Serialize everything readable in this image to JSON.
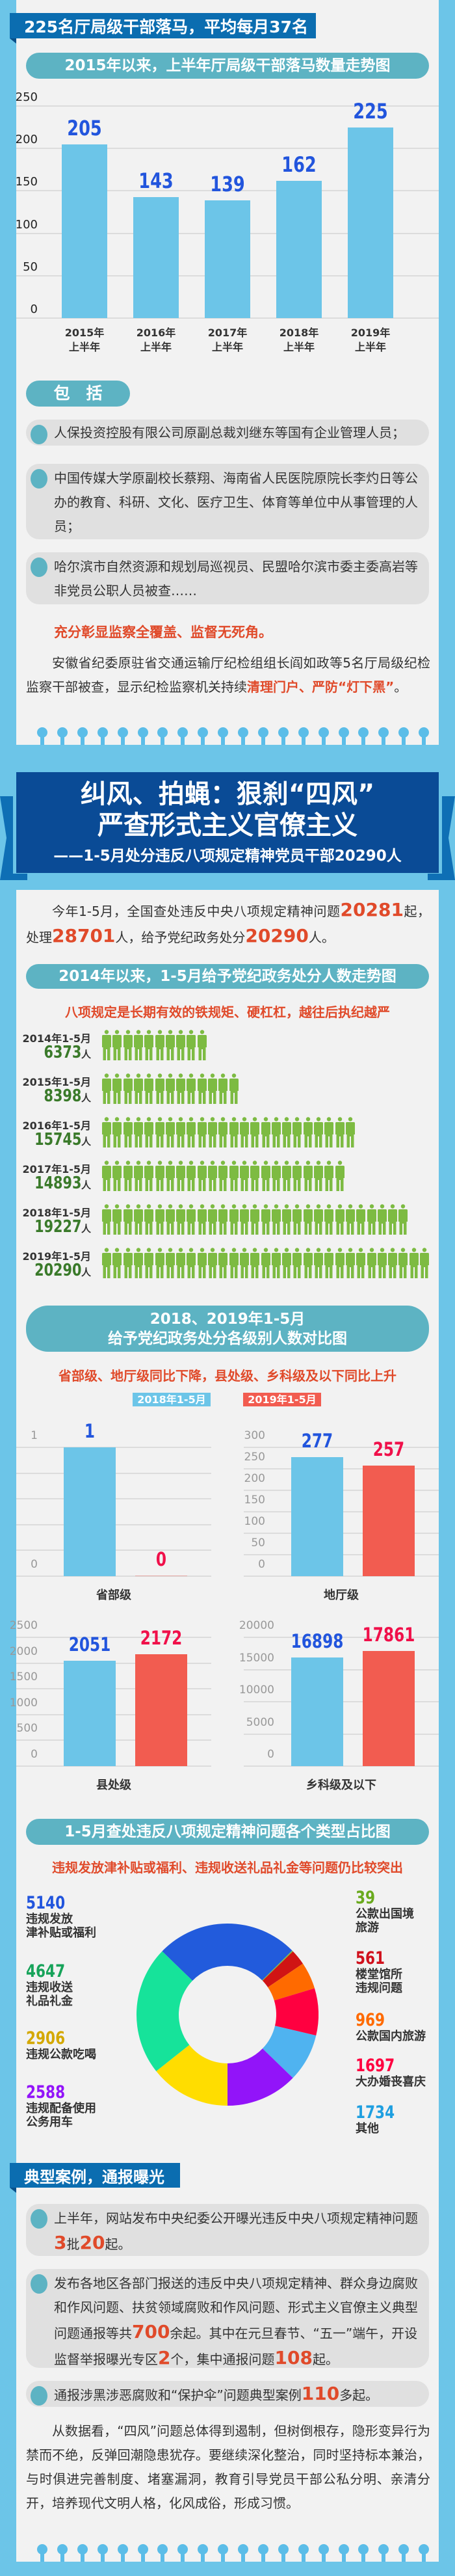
{
  "section1": {
    "header": "225名厅局级干部落马，平均每月37名",
    "chart_title": "2015年以来，上半年厅局级干部落马数量走势图"
  },
  "includes": {
    "label": "包　括",
    "items": [
      "人保投资控股有限公司原副总裁刘继东等国有企业管理人员；",
      "中国传媒大学原副校长蔡翔、海南省人民医院原院长李灼日等公办的教育、科研、文化、医疗卫生、体育等单位中从事管理的人员；",
      "哈尔滨市自然资源和规划局巡视员、民盟哈尔滨市委主委高岩等非党员公职人员被查……"
    ],
    "highlight": "充分彰显监察全覆盖、监督无死角。",
    "paragraph": [
      {
        "t": "安徽省纪委原驻省交通运输厅纪检组组长阎如政等5名厅局级纪检监察干部被查，显示纪检监察机关持续",
        "c": ""
      },
      {
        "t": "清理门户、严防“灯下黑”",
        "c": "red"
      },
      {
        "t": "。",
        "c": ""
      }
    ]
  },
  "banner": {
    "title_line1": "纠风、拍蝇：狠刹“四风”",
    "title_line2": "严查形式主义官僚主义",
    "subtitle": "——1-5月处分违反八项规定精神党员干部20290人"
  },
  "intro": [
    {
      "t": "今年1-5月，全国查处违反中央八项规定精神问题",
      "c": ""
    },
    {
      "t": "20281",
      "c": "big"
    },
    {
      "t": "起，处理",
      "c": ""
    },
    {
      "t": "28701",
      "c": "big"
    },
    {
      "t": "人，给予党纪政务处分",
      "c": ""
    },
    {
      "t": "20290",
      "c": "big"
    },
    {
      "t": "人。",
      "c": ""
    }
  ],
  "pictogram": {
    "title": "2014年以来，1-5月给予党纪政务处分人数走势图",
    "subtitle": "八项规定是长期有效的铁规矩、硬杠杠，越往后执纪越严"
  },
  "levels": {
    "title_line1": "2018、2019年1-5月",
    "title_line2": "给予党纪政务处分各级别人数对比图",
    "subtitle": "省部级、地厅级同比下降，县处级、乡科级及以下同比上升"
  },
  "donut": {
    "title": "1-5月查处违反八项规定精神问题各个类型占比图",
    "subtitle": "违规发放津补贴或福利、违规收送礼品礼金等问题仍比较突出"
  },
  "cases": {
    "header": "典型案例，通报曝光",
    "items": [
      [
        {
          "t": "上半年，网站发布中央纪委公开曝光违反中央八项规定精神问题",
          "c": ""
        },
        {
          "t": "3",
          "c": "big"
        },
        {
          "t": "批",
          "c": ""
        },
        {
          "t": "20",
          "c": "big"
        },
        {
          "t": "起。",
          "c": ""
        }
      ],
      [
        {
          "t": "发布各地区各部门报送的违反中央八项规定精神、群众身边腐败和作风问题、扶贫领域腐败和作风问题、形式主义官僚主义典型问题通报等共",
          "c": ""
        },
        {
          "t": "700",
          "c": "big"
        },
        {
          "t": "余起。其中在元旦春节、“五一”端午，开设监督举报曝光专区",
          "c": ""
        },
        {
          "t": "2",
          "c": "big"
        },
        {
          "t": "个，集中通报问题",
          "c": ""
        },
        {
          "t": "108",
          "c": "big"
        },
        {
          "t": "起。",
          "c": ""
        }
      ],
      [
        {
          "t": "通报涉黑涉恶腐败和“保护伞”问题典型案例",
          "c": ""
        },
        {
          "t": "110",
          "c": "big"
        },
        {
          "t": "多起。",
          "c": ""
        }
      ]
    ],
    "conclusion": "从数据看，“四风”问题总体得到遏制，但树倒根存，隐形变异行为禁而不绝，反弹回潮隐患犹存。要继续深化整治，同时坚持标本兼治，与时俱进完善制度、堵塞漏洞，教育引导党员干部公私分明、亲清分开，培养现代文明人格，化风成俗，形成习惯。"
  },
  "colors": {
    "background": "#6cc5e8",
    "panel": "#f2f2f2",
    "header": "#0b6db0",
    "banner": "#0a4b96",
    "pill": "#5db3c3",
    "accent_red": "#e04a2a",
    "bar_blue": "#6cc5e8",
    "bar_red": "#f25c50",
    "value_blue": "#2255dd",
    "value_red": "#f0104a",
    "person_green": "#7dbb42"
  },
  "chart_data": [
    {
      "type": "bar",
      "title": "2015年以来，上半年厅局级干部落马数量走势图",
      "categories": [
        [
          "2015年",
          "上半年"
        ],
        [
          "2016年",
          "上半年"
        ],
        [
          "2017年",
          "上半年"
        ],
        [
          "2018年",
          "上半年"
        ],
        [
          "2019年",
          "上半年"
        ]
      ],
      "values": [
        205,
        143,
        139,
        162,
        225
      ],
      "ylim": [
        0,
        250
      ],
      "yticks": [
        0,
        50,
        100,
        150,
        200,
        250
      ],
      "grid": true
    },
    {
      "type": "bar",
      "style": "pictogram",
      "title": "2014年以来，1-5月给予党纪政务处分人数走势图",
      "categories": [
        "2014年1-5月",
        "2015年1-5月",
        "2016年1-5月",
        "2017年1-5月",
        "2018年1-5月",
        "2019年1-5月"
      ],
      "values": [
        6373,
        8398,
        15745,
        14893,
        19227,
        20290
      ],
      "icon_counts": [
        10,
        13,
        24,
        23,
        29,
        31
      ],
      "unit": "人"
    },
    {
      "type": "bar",
      "title": "给予党纪政务处分各级别人数对比图",
      "legend": [
        "2018年1-5月",
        "2019年1-5月"
      ],
      "legend_position": "top",
      "panels": [
        {
          "category": "省部级",
          "values": [
            1,
            0
          ],
          "ylim": [
            0,
            1
          ],
          "yticks": [
            0,
            1
          ],
          "gridlines": 5
        },
        {
          "category": "地厅级",
          "values": [
            277,
            257
          ],
          "ylim": [
            0,
            300
          ],
          "yticks": [
            0,
            50,
            100,
            150,
            200,
            250,
            300
          ],
          "gridlines": 6
        },
        {
          "category": "县处级",
          "values": [
            2051,
            2172
          ],
          "ylim": [
            0,
            2500
          ],
          "yticks": [
            0,
            500,
            1000,
            1500,
            2000,
            2500
          ],
          "gridlines": 5
        },
        {
          "category": "乡科级及以下",
          "values": [
            16898,
            17861
          ],
          "ylim": [
            0,
            20000
          ],
          "yticks": [
            0,
            5000,
            10000,
            15000,
            20000
          ],
          "gridlines": 4
        }
      ]
    },
    {
      "type": "pie",
      "style": "donut",
      "title": "1-5月查处违反八项规定精神问题各个类型占比图",
      "slices": [
        {
          "label": "违规发放津补贴或福利",
          "lines": [
            "违规发放",
            "津补贴或福利"
          ],
          "value": 5140,
          "color": "#225bdc",
          "text_color": "#2255dd",
          "side": "left"
        },
        {
          "label": "公款出国境旅游",
          "lines": [
            "公款出国境",
            "旅游"
          ],
          "value": 39,
          "color": "#7ac142",
          "text_color": "#6aaa1e",
          "side": "right"
        },
        {
          "label": "楼堂馆所违规问题",
          "lines": [
            "楼堂馆所",
            "违规问题"
          ],
          "value": 561,
          "color": "#d01414",
          "text_color": "#d0101c",
          "side": "right"
        },
        {
          "label": "公款国内旅游",
          "lines": [
            "公款国内旅游"
          ],
          "value": 969,
          "color": "#ff6a00",
          "text_color": "#ff6a00",
          "side": "right"
        },
        {
          "label": "大办婚丧喜庆",
          "lines": [
            "大办婚丧喜庆"
          ],
          "value": 1697,
          "color": "#ff0040",
          "text_color": "#ff0040",
          "side": "right"
        },
        {
          "label": "其他",
          "lines": [
            "其他"
          ],
          "value": 1734,
          "color": "#4fb3f0",
          "text_color": "#1e9fe0",
          "side": "right"
        },
        {
          "label": "违规配备使用公务用车",
          "lines": [
            "违规配备使用",
            "公务用车"
          ],
          "value": 2588,
          "color": "#9214f9",
          "text_color": "#9214f9",
          "side": "left"
        },
        {
          "label": "违规公款吃喝",
          "lines": [
            "违规公款吃喝"
          ],
          "value": 2906,
          "color": "#ffdd00",
          "text_color": "#d4a800",
          "side": "left"
        },
        {
          "label": "违规收送礼品礼金",
          "lines": [
            "违规收送",
            "礼品礼金"
          ],
          "value": 4647,
          "color": "#16e39a",
          "text_color": "#17a35a",
          "side": "left"
        }
      ]
    }
  ]
}
